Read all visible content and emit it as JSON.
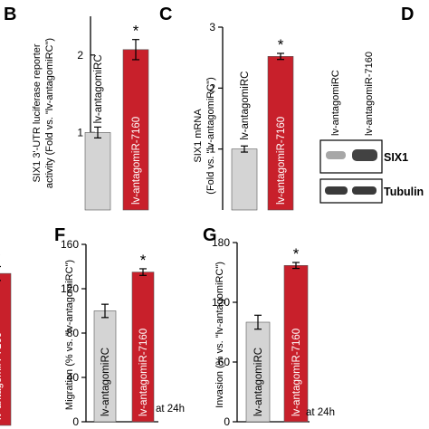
{
  "colors": {
    "control_bar": "#d4d4d4",
    "treatment_bar": "#c8202b",
    "control_text": "#000000",
    "treatment_text": "#ffffff",
    "axis": "#000000"
  },
  "blot": {
    "panel_label": "D",
    "lanes": [
      "lv-antagomiRC",
      "lv-antagomiR-7160"
    ],
    "bands": [
      "SIX1",
      "Tubulin"
    ]
  },
  "chart_data": [
    {
      "panel": "B",
      "type": "bar",
      "ylabel_lines": [
        "SIX1 3'-UTR luciferase reporter",
        "activity (Fold vs. \"lv-antagomiRC\")"
      ],
      "ylim": [
        0,
        2.5
      ],
      "yticks": [
        1,
        2
      ],
      "categories": [
        "lv-antagomiRC",
        "lv-antagomiR-7160"
      ],
      "values": [
        1.0,
        2.07
      ],
      "errors": [
        0.07,
        0.13
      ],
      "significance": [
        "",
        "*"
      ],
      "note": ""
    },
    {
      "panel": "C",
      "type": "bar",
      "ylabel_lines": [
        "SIX1 mRNA",
        "(Fold vs. \"lv-antagomiRC\")"
      ],
      "ylim": [
        0,
        3
      ],
      "yticks": [
        1,
        2,
        3
      ],
      "categories": [
        "lv-antagomiRC",
        "lv-antagomiR-7160"
      ],
      "values": [
        1.0,
        2.52
      ],
      "errors": [
        0.05,
        0.05
      ],
      "significance": [
        "",
        "*"
      ],
      "note": ""
    },
    {
      "panel": "",
      "type": "bar",
      "ylabel_lines": [],
      "ylim": [
        0,
        160
      ],
      "yticks": [],
      "categories": [
        "",
        "lv-antagomiR-7160"
      ],
      "values": [
        null,
        131
      ],
      "errors": [
        0,
        6
      ],
      "significance": [
        "",
        "*"
      ],
      "note": ""
    },
    {
      "panel": "F",
      "type": "bar",
      "ylabel_lines": [
        "Migration (% vs. \"lv-antagomiRC\")"
      ],
      "ylim": [
        0,
        160
      ],
      "yticks": [
        0,
        40,
        80,
        120,
        160
      ],
      "categories": [
        "lv-antagomiRC",
        "lv-antagomiR-7160"
      ],
      "values": [
        100,
        135
      ],
      "errors": [
        6,
        3
      ],
      "significance": [
        "",
        "*"
      ],
      "note": "at 24h"
    },
    {
      "panel": "G",
      "type": "bar",
      "ylabel_lines": [
        "Invasion (% vs. \"lv-antagomiRC\")"
      ],
      "ylim": [
        0,
        180
      ],
      "yticks": [
        0,
        60,
        120,
        180
      ],
      "categories": [
        "lv-antagomiRC",
        "lv-antagomiR-7160"
      ],
      "values": [
        100,
        157
      ],
      "errors": [
        7,
        3
      ],
      "significance": [
        "",
        "*"
      ],
      "note": "at 24h"
    }
  ]
}
